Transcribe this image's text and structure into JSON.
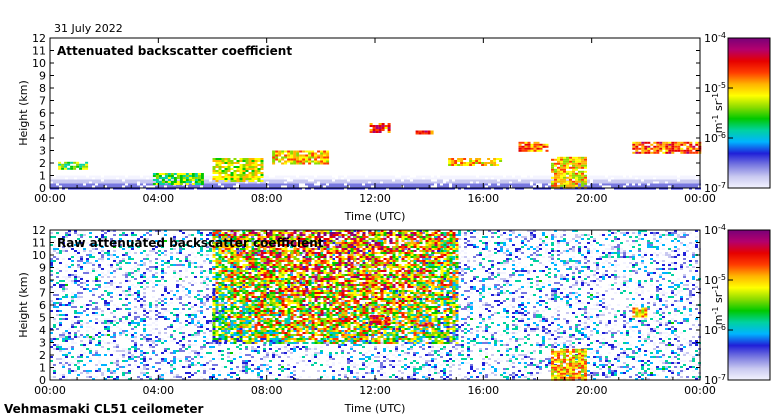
{
  "header": {
    "date": "31 July 2022"
  },
  "footer": {
    "instrument": "Vehmasmaki CL51 ceilometer"
  },
  "colorbar_unit": {
    "base": "m",
    "exp1": "-1",
    "mid": " sr",
    "exp2": "-1"
  },
  "colors": {
    "scale": [
      "#f4f4ff",
      "#c8c8f0",
      "#7878e0",
      "#2020d8",
      "#00b4ff",
      "#00d2a0",
      "#00c800",
      "#8cdc00",
      "#ffff00",
      "#ffb400",
      "#ff3c00",
      "#e60000",
      "#b4006e",
      "#780078"
    ]
  },
  "chart_data": [
    {
      "type": "heatmap",
      "title": "Attenuated backscatter coefficient",
      "xlabel": "Time (UTC)",
      "ylabel": "Height (km)",
      "xlim": [
        "00:00",
        "24:00"
      ],
      "ylim": [
        0,
        12
      ],
      "x_ticks": [
        "00:00",
        "04:00",
        "08:00",
        "12:00",
        "16:00",
        "20:00",
        "00:00"
      ],
      "y_ticks": [
        0,
        1,
        2,
        3,
        4,
        5,
        6,
        7,
        8,
        9,
        10,
        11,
        12
      ],
      "colorbar": {
        "scale": "log",
        "range": [
          1e-07,
          0.0001
        ],
        "ticks": [
          {
            "base": "10",
            "exp": "-7"
          },
          {
            "base": "10",
            "exp": "-6"
          },
          {
            "base": "10",
            "exp": "-5"
          },
          {
            "base": "10",
            "exp": "-4"
          }
        ]
      },
      "features": [
        {
          "kind": "boundary_layer",
          "t": [
            0,
            24
          ],
          "height_km": [
            0,
            1.0
          ],
          "level": [
            1e-07,
            5e-07
          ]
        },
        {
          "kind": "cloud",
          "t": [
            0.3,
            1.4
          ],
          "height_km": [
            1.6,
            2.1
          ],
          "level": 3e-06
        },
        {
          "kind": "cloud",
          "t": [
            3.8,
            5.6
          ],
          "height_km": [
            0.3,
            1.2
          ],
          "level": 3e-06
        },
        {
          "kind": "cloud",
          "t": [
            6.0,
            7.8
          ],
          "height_km": [
            0.6,
            2.4
          ],
          "level": 6e-06
        },
        {
          "kind": "cloud",
          "t": [
            8.2,
            10.3
          ],
          "height_km": [
            1.9,
            3.0
          ],
          "level": 8e-06
        },
        {
          "kind": "cloud",
          "t": [
            11.8,
            12.5
          ],
          "height_km": [
            4.4,
            5.2
          ],
          "level": 2e-05
        },
        {
          "kind": "cloud",
          "t": [
            13.5,
            14.1
          ],
          "height_km": [
            4.3,
            4.6
          ],
          "level": 2e-05
        },
        {
          "kind": "cloud",
          "t": [
            14.7,
            16.6
          ],
          "height_km": [
            1.8,
            2.4
          ],
          "level": 1e-05
        },
        {
          "kind": "cloud",
          "t": [
            17.3,
            18.3
          ],
          "height_km": [
            3.0,
            3.7
          ],
          "level": 1.5e-05
        },
        {
          "kind": "precipitation",
          "t": [
            18.5,
            19.8
          ],
          "height_km": [
            0,
            2.5
          ],
          "level": 8e-06
        },
        {
          "kind": "cloud",
          "t": [
            21.5,
            24
          ],
          "height_km": [
            2.8,
            3.7
          ],
          "level": 2e-05
        }
      ]
    },
    {
      "type": "heatmap",
      "title": "Raw attenuated backscatter coefficient",
      "xlabel": "Time (UTC)",
      "ylabel": "Height (km)",
      "xlim": [
        "00:00",
        "24:00"
      ],
      "ylim": [
        0,
        12
      ],
      "x_ticks": [
        "00:00",
        "04:00",
        "08:00",
        "12:00",
        "16:00",
        "20:00",
        "00:00"
      ],
      "y_ticks": [
        0,
        1,
        2,
        3,
        4,
        5,
        6,
        7,
        8,
        9,
        10,
        11,
        12
      ],
      "colorbar": {
        "scale": "log",
        "range": [
          1e-07,
          0.0001
        ],
        "ticks": [
          {
            "base": "10",
            "exp": "-7"
          },
          {
            "base": "10",
            "exp": "-6"
          },
          {
            "base": "10",
            "exp": "-5"
          },
          {
            "base": "10",
            "exp": "-4"
          }
        ]
      },
      "features": [
        {
          "kind": "background_noise",
          "t": [
            0,
            24
          ],
          "height_km": [
            0,
            12
          ],
          "level": 3e-07
        },
        {
          "kind": "solar_noise",
          "t": [
            6,
            15
          ],
          "height_km": [
            3,
            12
          ],
          "level": 2e-05
        },
        {
          "kind": "cloud",
          "t": [
            11.8,
            12.5
          ],
          "height_km": [
            4.4,
            5.2
          ],
          "level": 3e-05
        },
        {
          "kind": "cloud",
          "t": [
            13.5,
            14.1
          ],
          "height_km": [
            4.3,
            4.6
          ],
          "level": 3e-05
        },
        {
          "kind": "precipitation",
          "t": [
            18.5,
            19.8
          ],
          "height_km": [
            0,
            2.5
          ],
          "level": 1e-05
        },
        {
          "kind": "cloud",
          "t": [
            21.5,
            22
          ],
          "height_km": [
            5.0,
            5.8
          ],
          "level": 1e-05
        }
      ]
    }
  ]
}
